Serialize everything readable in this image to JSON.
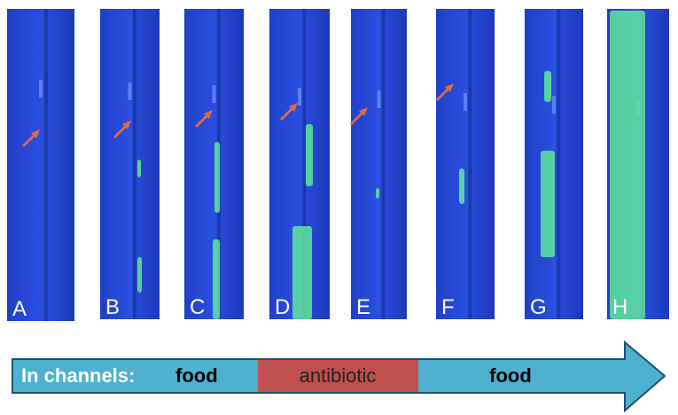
{
  "panels": [
    {
      "label": "A"
    },
    {
      "label": "B"
    },
    {
      "label": "C"
    },
    {
      "label": "D"
    },
    {
      "label": "E"
    },
    {
      "label": "F"
    },
    {
      "label": "G"
    },
    {
      "label": "H"
    }
  ],
  "timeline": {
    "prefix": "In channels:",
    "segments": [
      {
        "label": "food"
      },
      {
        "label": "antibiotic"
      },
      {
        "label": "food"
      }
    ]
  }
}
